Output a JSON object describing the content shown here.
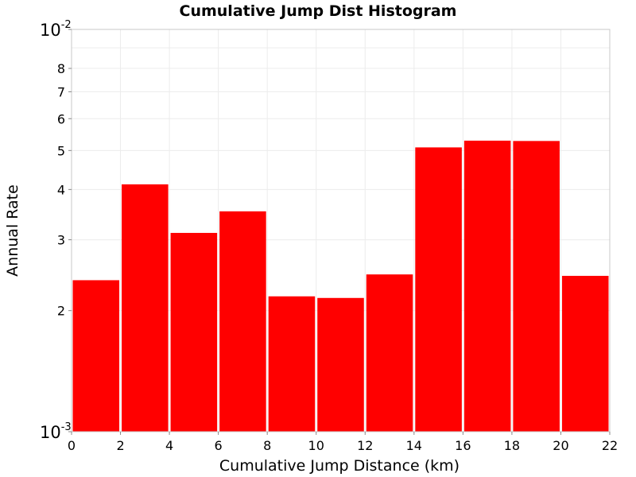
{
  "chart_data": {
    "type": "bar",
    "title": "Cumulative Jump Dist Histogram",
    "xlabel": "Cumulative Jump Distance (km)",
    "ylabel": "Annual Rate",
    "x_scale": "linear",
    "y_scale": "log",
    "xlim": [
      0,
      22
    ],
    "ylim": [
      0.001,
      0.01
    ],
    "x_ticks": [
      0,
      2,
      4,
      6,
      8,
      10,
      12,
      14,
      16,
      18,
      20,
      22
    ],
    "y_minor_ticks": [
      {
        "value": 0.002,
        "label": "2"
      },
      {
        "value": 0.003,
        "label": "3"
      },
      {
        "value": 0.004,
        "label": "4"
      },
      {
        "value": 0.005,
        "label": "5"
      },
      {
        "value": 0.006,
        "label": "6"
      },
      {
        "value": 0.007,
        "label": "7"
      },
      {
        "value": 0.008,
        "label": "8"
      }
    ],
    "y_decades": [
      {
        "value": 0.001,
        "base": "10",
        "exp": "-3"
      },
      {
        "value": 0.01,
        "base": "10",
        "exp": "-2"
      }
    ],
    "bar_color": "#ff0000",
    "grid": true,
    "bins": [
      {
        "x0": 0,
        "x1": 2,
        "value": 0.00238
      },
      {
        "x0": 2,
        "x1": 4,
        "value": 0.00412
      },
      {
        "x0": 4,
        "x1": 6,
        "value": 0.00312
      },
      {
        "x0": 6,
        "x1": 8,
        "value": 0.00353
      },
      {
        "x0": 8,
        "x1": 10,
        "value": 0.00217
      },
      {
        "x0": 10,
        "x1": 12,
        "value": 0.00215
      },
      {
        "x0": 12,
        "x1": 14,
        "value": 0.00246
      },
      {
        "x0": 14,
        "x1": 16,
        "value": 0.00509
      },
      {
        "x0": 16,
        "x1": 18,
        "value": 0.00529
      },
      {
        "x0": 18,
        "x1": 20,
        "value": 0.00528
      },
      {
        "x0": 20,
        "x1": 22,
        "value": 0.00244
      }
    ]
  }
}
